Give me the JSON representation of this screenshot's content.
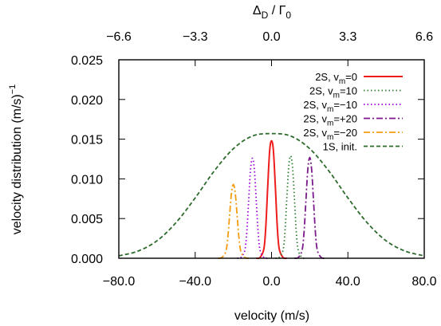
{
  "chart_data": {
    "type": "line",
    "xlabel": "velocity (m/s)",
    "ylabel": "velocity distribution (m/s)",
    "ylabel_superscript": "−1",
    "top_axis_label": "Δ",
    "top_axis_label_sub": "D",
    "top_axis_label_mid": " / Γ",
    "top_axis_label_sub2": "0",
    "xlim": [
      -80,
      80
    ],
    "ylim": [
      0,
      0.025
    ],
    "xticks": [
      {
        "value": -80,
        "label": "−80.0"
      },
      {
        "value": -40,
        "label": "−40.0"
      },
      {
        "value": 0,
        "label": "0.0"
      },
      {
        "value": 40,
        "label": "40.0"
      },
      {
        "value": 80,
        "label": "80.0"
      }
    ],
    "yticks": [
      {
        "value": 0,
        "label": "0.000"
      },
      {
        "value": 0.005,
        "label": "0.005"
      },
      {
        "value": 0.01,
        "label": "0.010"
      },
      {
        "value": 0.015,
        "label": "0.015"
      },
      {
        "value": 0.02,
        "label": "0.020"
      },
      {
        "value": 0.025,
        "label": "0.025"
      }
    ],
    "top_ticks": [
      {
        "value": -80,
        "label": "−6.6"
      },
      {
        "value": -40,
        "label": "−3.3"
      },
      {
        "value": 0,
        "label": "0.0"
      },
      {
        "value": 40,
        "label": "3.3"
      },
      {
        "value": 80,
        "label": "6.6"
      }
    ],
    "grid": false,
    "legend_position": "top-right",
    "series": [
      {
        "name": "2S, v",
        "name_sub": "m",
        "name_suffix": "=0",
        "color": "#ee1c1c",
        "dash": "solid",
        "x": [
          -8,
          -6,
          -4,
          -3,
          -2,
          -1,
          0,
          1,
          2,
          3,
          4,
          6,
          8
        ],
        "y": [
          0.0,
          0.0001,
          0.0012,
          0.004,
          0.009,
          0.0135,
          0.0148,
          0.0135,
          0.009,
          0.004,
          0.0012,
          0.0001,
          0.0
        ]
      },
      {
        "name": "2S, v",
        "name_sub": "m",
        "name_suffix": "=10",
        "color": "#2e7d32",
        "dash": "dotted",
        "x": [
          2,
          4,
          6,
          7,
          8,
          9,
          10,
          11,
          12,
          13,
          14,
          16,
          18
        ],
        "y": [
          0.0,
          0.0001,
          0.001,
          0.0032,
          0.0075,
          0.0115,
          0.0129,
          0.0115,
          0.0075,
          0.0032,
          0.001,
          0.0001,
          0.0
        ]
      },
      {
        "name": "2S, v",
        "name_sub": "m",
        "name_suffix": "=−10",
        "color": "#9b00e0",
        "dash": "dotted",
        "x": [
          -18,
          -16,
          -14,
          -13,
          -12,
          -11,
          -10,
          -9,
          -8,
          -7,
          -6,
          -4,
          -2
        ],
        "y": [
          0.0,
          0.0001,
          0.001,
          0.0032,
          0.0072,
          0.0112,
          0.0126,
          0.0112,
          0.0072,
          0.0032,
          0.001,
          0.0001,
          0.0
        ]
      },
      {
        "name": "2S, v",
        "name_sub": "m",
        "name_suffix": "=+20",
        "color": "#7b1a8a",
        "dash": "dashdot",
        "x": [
          12,
          14,
          16,
          17,
          18,
          19,
          20,
          21,
          22,
          23,
          24,
          26,
          28
        ],
        "y": [
          0.0,
          0.0001,
          0.001,
          0.0032,
          0.0072,
          0.0112,
          0.0127,
          0.0112,
          0.0072,
          0.0032,
          0.001,
          0.0001,
          0.0
        ]
      },
      {
        "name": "2S, v",
        "name_sub": "m",
        "name_suffix": "=−20",
        "color": "#f39c12",
        "dash": "dashdot",
        "x": [
          -28,
          -26,
          -24,
          -23,
          -22,
          -21,
          -20,
          -19,
          -18,
          -17,
          -16,
          -14,
          -12
        ],
        "y": [
          0.0,
          0.0001,
          0.0008,
          0.0024,
          0.0053,
          0.0082,
          0.0093,
          0.0082,
          0.0053,
          0.0024,
          0.0008,
          0.0001,
          0.0
        ]
      },
      {
        "name": "1S, init.",
        "color": "#2e6b2e",
        "dash": "dashed",
        "x": [
          -80,
          -70,
          -60,
          -50,
          -40,
          -30,
          -20,
          -10,
          0,
          10,
          20,
          30,
          40,
          50,
          60,
          70,
          80
        ],
        "y": [
          0.0003,
          0.0009,
          0.0022,
          0.0045,
          0.0076,
          0.011,
          0.0138,
          0.0154,
          0.0157,
          0.0154,
          0.0138,
          0.011,
          0.0076,
          0.0045,
          0.0022,
          0.0009,
          0.0003
        ]
      }
    ]
  }
}
